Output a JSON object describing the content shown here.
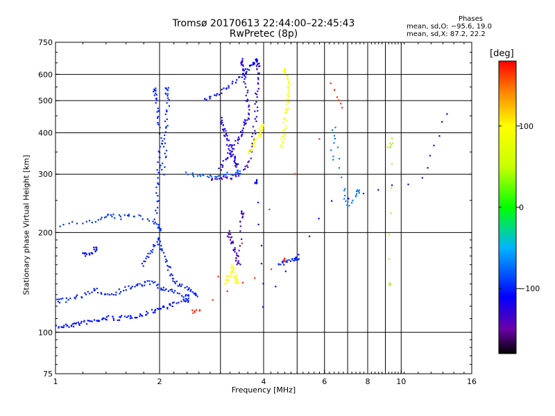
{
  "title": {
    "line1": "Tromsø 20170613 22:44:00–22:45:43",
    "line2": "RwPretec (8p)"
  },
  "phases": {
    "heading": "Phases",
    "line1": "mean, sd,O: −95.6, 19.0",
    "line2": "mean, sd,X:  87.2, 22.2"
  },
  "colorbar": {
    "label": "[deg]",
    "ticks": [
      "100",
      "0",
      "−100"
    ],
    "tick_values": [
      100,
      0,
      -100
    ],
    "range": [
      -180,
      180
    ],
    "stops": [
      {
        "v": -180,
        "c": "#000000"
      },
      {
        "v": -150,
        "c": "#6a00a8"
      },
      {
        "v": -110,
        "c": "#0000ff"
      },
      {
        "v": -50,
        "c": "#00b4ff"
      },
      {
        "v": 0,
        "c": "#00ff00"
      },
      {
        "v": 50,
        "c": "#c8ff00"
      },
      {
        "v": 100,
        "c": "#ffff00"
      },
      {
        "v": 140,
        "c": "#ff8c00"
      },
      {
        "v": 180,
        "c": "#ff0000"
      }
    ]
  },
  "chart_data": {
    "type": "scatter",
    "xlabel": "Frequency [MHz]",
    "ylabel": "Stationary phase Virtual Height [km]",
    "xscale": "log",
    "yscale": "log",
    "xlim": [
      1,
      16
    ],
    "ylim": [
      75,
      750
    ],
    "xticks": [
      1,
      2,
      4,
      6,
      8,
      10,
      16
    ],
    "xticklabels": [
      "1",
      "2",
      "4",
      "6",
      "8",
      "10",
      "16"
    ],
    "xminor": [
      3,
      5,
      7,
      9
    ],
    "yticks": [
      75,
      100,
      200,
      300,
      400,
      500,
      600,
      750
    ],
    "yticklabels": [
      "75",
      "100",
      "200",
      "300",
      "400",
      "500",
      "600",
      "750"
    ],
    "grid": true,
    "traces": [
      {
        "phase": -105,
        "points": [
          [
            1.0,
            104
          ],
          [
            1.05,
            104
          ],
          [
            1.1,
            105
          ],
          [
            1.15,
            106
          ],
          [
            1.2,
            107
          ],
          [
            1.28,
            108
          ],
          [
            1.35,
            109
          ],
          [
            1.42,
            111
          ],
          [
            1.5,
            110
          ],
          [
            1.6,
            111
          ],
          [
            1.7,
            112
          ],
          [
            1.8,
            113
          ],
          [
            1.9,
            116
          ],
          [
            2.0,
            118
          ],
          [
            2.1,
            120
          ],
          [
            2.2,
            122
          ],
          [
            2.4,
            125
          ]
        ]
      },
      {
        "phase": -100,
        "points": [
          [
            1.0,
            124
          ],
          [
            1.07,
            125
          ],
          [
            1.15,
            128
          ],
          [
            1.25,
            131
          ],
          [
            1.32,
            134
          ],
          [
            1.4,
            130
          ],
          [
            1.5,
            132
          ],
          [
            1.6,
            136
          ],
          [
            1.7,
            138
          ],
          [
            1.8,
            140
          ],
          [
            1.9,
            142
          ],
          [
            2.0,
            136
          ],
          [
            2.1,
            134
          ],
          [
            2.2,
            132
          ],
          [
            2.4,
            128
          ]
        ]
      },
      {
        "phase": -95,
        "points": [
          [
            1.0,
            208
          ],
          [
            1.2,
            215
          ],
          [
            1.35,
            220
          ],
          [
            1.45,
            225
          ],
          [
            1.55,
            222
          ],
          [
            1.7,
            226
          ],
          [
            1.9,
            218
          ],
          [
            2.0,
            205
          ]
        ]
      },
      {
        "phase": -100,
        "points": [
          [
            1.78,
            160
          ],
          [
            1.85,
            170
          ],
          [
            1.92,
            180
          ],
          [
            2.0,
            190
          ],
          [
            2.05,
            175
          ],
          [
            2.1,
            160
          ],
          [
            2.15,
            150
          ],
          [
            2.2,
            142
          ],
          [
            2.3,
            138
          ],
          [
            2.45,
            135
          ],
          [
            2.55,
            130
          ]
        ]
      },
      {
        "phase": -108,
        "points": [
          [
            1.2,
            175
          ],
          [
            1.25,
            170
          ],
          [
            1.3,
            178
          ]
        ]
      },
      {
        "phase": -100,
        "points": [
          [
            1.95,
            220
          ],
          [
            1.97,
            260
          ],
          [
            1.98,
            300
          ],
          [
            2.0,
            340
          ],
          [
            2.02,
            380
          ],
          [
            1.99,
            440
          ],
          [
            1.96,
            500
          ],
          [
            1.93,
            540
          ]
        ]
      },
      {
        "phase": -95,
        "points": [
          [
            2.05,
            300
          ],
          [
            2.07,
            350
          ],
          [
            2.09,
            400
          ],
          [
            2.1,
            450
          ],
          [
            2.12,
            500
          ],
          [
            2.1,
            540
          ]
        ]
      },
      {
        "phase": -80,
        "points": [
          [
            2.4,
            300
          ],
          [
            2.6,
            298
          ],
          [
            2.8,
            296
          ],
          [
            3.0,
            297
          ],
          [
            3.2,
            300
          ],
          [
            3.4,
            304
          ]
        ]
      },
      {
        "phase": -130,
        "points": [
          [
            2.8,
            290
          ],
          [
            3.0,
            291
          ],
          [
            3.2,
            292
          ],
          [
            3.4,
            298
          ],
          [
            3.6,
            320
          ],
          [
            3.7,
            360
          ],
          [
            3.75,
            400
          ],
          [
            3.8,
            460
          ],
          [
            3.82,
            520
          ],
          [
            3.84,
            580
          ],
          [
            3.86,
            640
          ]
        ]
      },
      {
        "phase": -125,
        "points": [
          [
            3.0,
            310
          ],
          [
            3.1,
            330
          ],
          [
            3.2,
            350
          ],
          [
            3.3,
            370
          ],
          [
            3.4,
            390
          ],
          [
            3.5,
            410
          ],
          [
            3.55,
            430
          ],
          [
            3.6,
            450
          ],
          [
            3.58,
            500
          ],
          [
            3.55,
            560
          ],
          [
            3.5,
            620
          ],
          [
            3.47,
            660
          ]
        ]
      },
      {
        "phase": -110,
        "points": [
          [
            2.7,
            500
          ],
          [
            2.9,
            520
          ],
          [
            3.1,
            545
          ],
          [
            3.3,
            575
          ],
          [
            3.5,
            600
          ],
          [
            3.6,
            620
          ],
          [
            3.7,
            645
          ],
          [
            3.8,
            660
          ]
        ]
      },
      {
        "phase": -120,
        "points": [
          [
            3.0,
            440
          ],
          [
            3.05,
            420
          ],
          [
            3.1,
            400
          ],
          [
            3.15,
            380
          ],
          [
            3.2,
            360
          ],
          [
            3.25,
            340
          ],
          [
            3.3,
            330
          ],
          [
            3.35,
            320
          ]
        ]
      },
      {
        "phase": -135,
        "points": [
          [
            3.15,
            200
          ],
          [
            3.2,
            195
          ],
          [
            3.25,
            185
          ],
          [
            3.3,
            175
          ],
          [
            3.35,
            165
          ],
          [
            3.4,
            160
          ],
          [
            3.45,
            210
          ],
          [
            3.48,
            230
          ]
        ]
      },
      {
        "phase": 100,
        "points": [
          [
            3.1,
            140
          ],
          [
            3.15,
            145
          ],
          [
            3.2,
            152
          ],
          [
            3.25,
            158
          ],
          [
            3.3,
            148
          ],
          [
            3.35,
            142
          ]
        ]
      },
      {
        "phase": 95,
        "points": [
          [
            4.5,
            360
          ],
          [
            4.55,
            390
          ],
          [
            4.6,
            420
          ],
          [
            4.65,
            460
          ],
          [
            4.7,
            500
          ],
          [
            4.72,
            540
          ],
          [
            4.7,
            580
          ],
          [
            4.6,
            620
          ]
        ]
      },
      {
        "phase": 100,
        "points": [
          [
            3.6,
            350
          ],
          [
            3.7,
            360
          ],
          [
            3.8,
            380
          ],
          [
            3.9,
            400
          ],
          [
            3.95,
            420
          ]
        ]
      },
      {
        "phase": -100,
        "points": [
          [
            4.4,
            160
          ],
          [
            4.6,
            162
          ],
          [
            4.8,
            165
          ],
          [
            5.0,
            168
          ]
        ]
      },
      {
        "phase": -70,
        "points": [
          [
            6.3,
            330
          ],
          [
            6.4,
            420
          ],
          [
            6.8,
            270
          ],
          [
            7.0,
            240
          ],
          [
            7.5,
            265
          ]
        ]
      },
      {
        "phase": 40,
        "points": [
          [
            9.2,
            360
          ],
          [
            9.4,
            380
          ],
          [
            9.3,
            140
          ]
        ]
      },
      {
        "phase": -110,
        "points": [
          [
            13.5,
            460
          ],
          [
            11.5,
            290
          ],
          [
            6.3,
            250
          ],
          [
            4.0,
            120
          ],
          [
            3.8,
            285
          ]
        ]
      },
      {
        "phase": 170,
        "points": [
          [
            6.3,
            560
          ],
          [
            6.8,
            480
          ],
          [
            2.5,
            115
          ],
          [
            2.6,
            118
          ],
          [
            4.6,
            165
          ]
        ]
      }
    ]
  }
}
